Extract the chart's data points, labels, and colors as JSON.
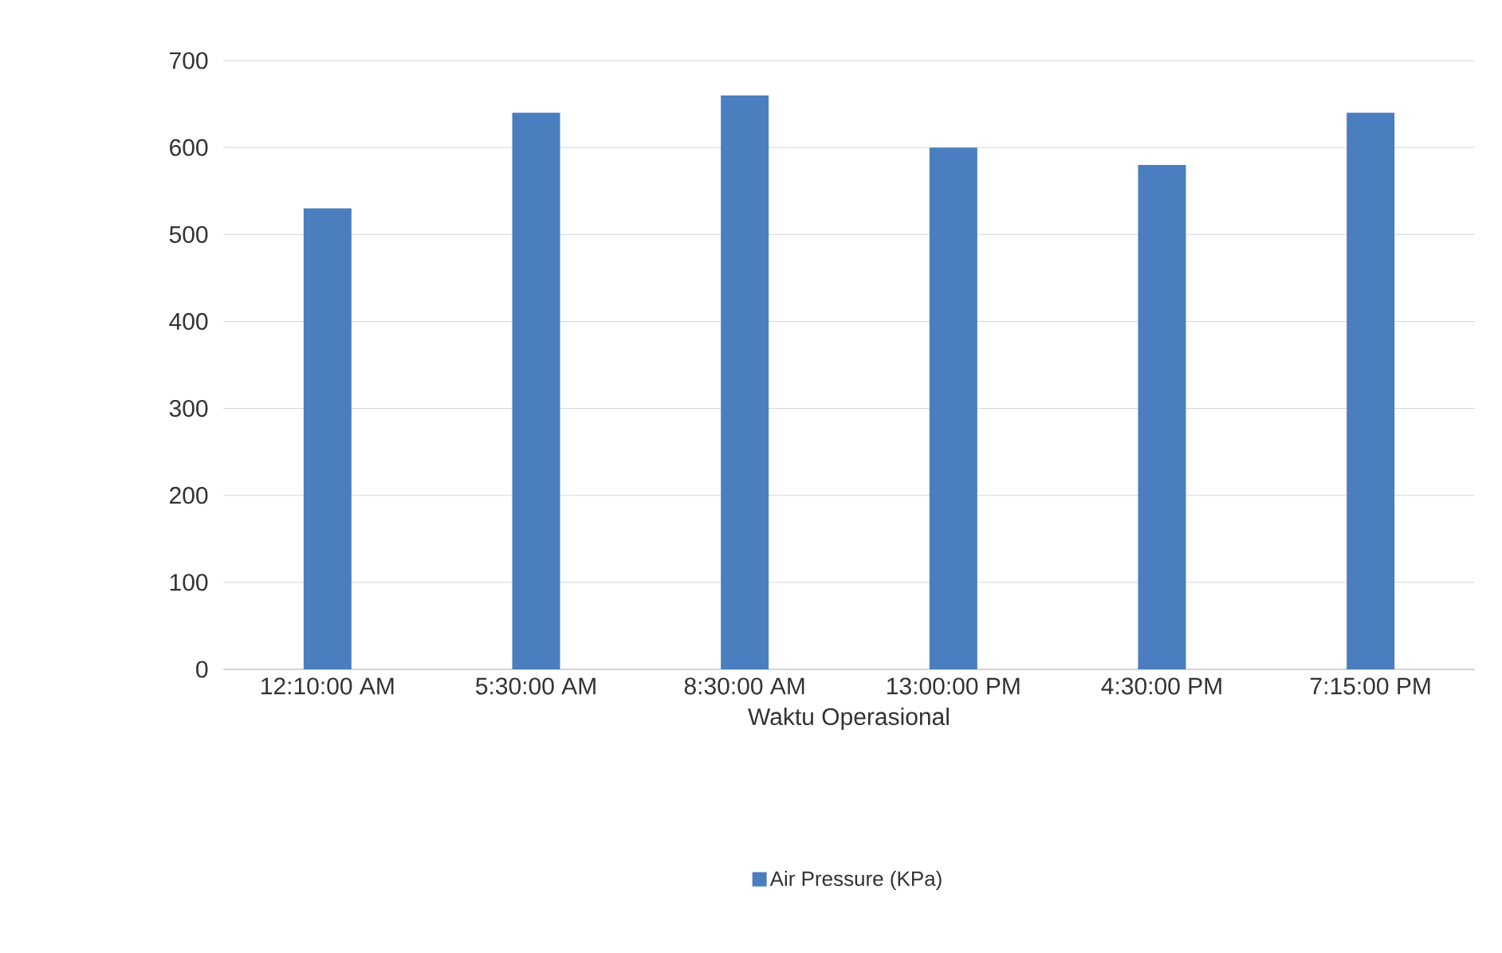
{
  "chart_data": {
    "type": "bar",
    "xlabel": "Waktu Operasional",
    "categories": [
      "12:10:00 AM",
      "5:30:00 AM",
      "8:30:00 AM",
      "13:00:00 PM",
      "4:30:00 PM",
      "7:15:00 PM"
    ],
    "series": [
      {
        "name": "Air Pressure (KPa)",
        "color": "#4a7ebf",
        "values": [
          530,
          640,
          660,
          600,
          580,
          640
        ]
      }
    ],
    "ylim": [
      0,
      700
    ],
    "yticks": [
      0,
      100,
      200,
      300,
      400,
      500,
      600,
      700
    ],
    "grid": "y",
    "legend": "bottom"
  }
}
